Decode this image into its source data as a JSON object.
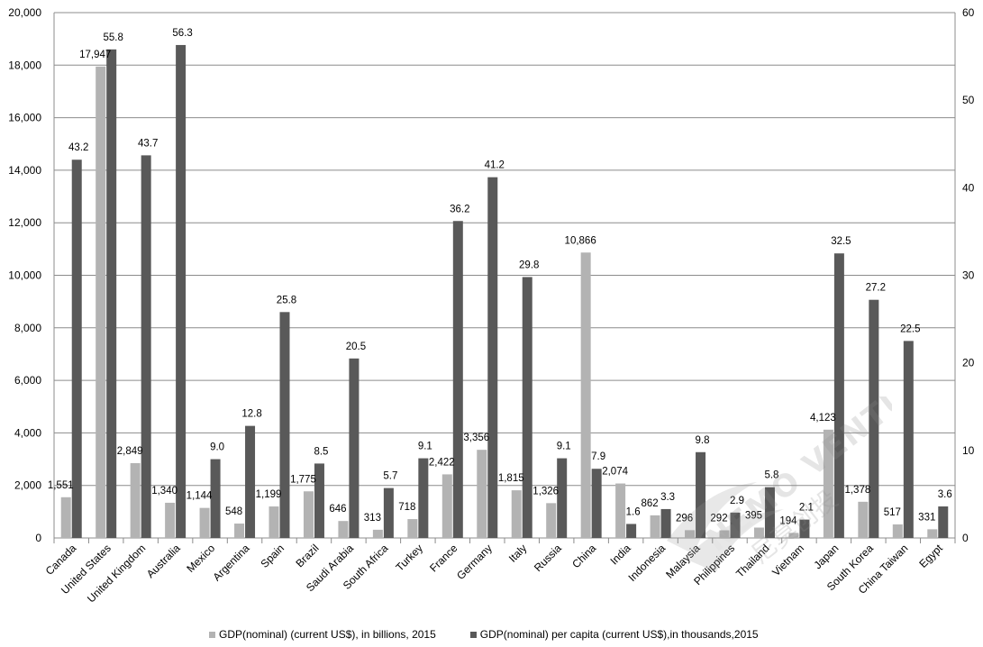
{
  "chart_data": {
    "type": "bar",
    "categories": [
      "Canada",
      "United States",
      "United Kingdom",
      "Australia",
      "Mexico",
      "Argentina",
      "Spain",
      "Brazil",
      "Saudi Arabia",
      "South Africa",
      "Turkey",
      "France",
      "Germany",
      "Italy",
      "Russia",
      "China",
      "India",
      "Indonesia",
      "Malaysia",
      "Philippines",
      "Thailand",
      "Vietnam",
      "Japan",
      "South Korea",
      "China Taiwan",
      "Egypt"
    ],
    "series": [
      {
        "name": "GDP(nominal) (current US$), in billions, 2015",
        "axis": "left",
        "color": "#b3b3b3",
        "values": [
          1551,
          17947,
          2849,
          1340,
          1144,
          548,
          1199,
          1775,
          646,
          313,
          718,
          2422,
          3356,
          1815,
          1326,
          10866,
          2074,
          862,
          296,
          292,
          395,
          194,
          4123,
          1378,
          517,
          331
        ],
        "labels": [
          "1,551",
          "17,947",
          "2,849",
          "1,340",
          "1,144",
          "548",
          "1,199",
          "1,775",
          "646",
          "313",
          "718",
          "2,422",
          "3,356",
          "1,815",
          "1,326",
          "10,866",
          "2,074",
          "862",
          "296",
          "292",
          "395",
          "194",
          "4,123",
          "1,378",
          "517",
          "331"
        ]
      },
      {
        "name": "GDP(nominal) per capita (current US$),in thousands,2015",
        "axis": "right",
        "color": "#595959",
        "values": [
          43.2,
          55.8,
          43.7,
          56.3,
          9.0,
          12.8,
          25.8,
          8.5,
          20.5,
          5.7,
          9.1,
          36.2,
          41.2,
          29.8,
          9.1,
          7.9,
          1.6,
          3.3,
          9.8,
          2.9,
          5.8,
          2.1,
          32.5,
          27.2,
          22.5,
          3.6
        ],
        "labels": [
          "43.2",
          "55.8",
          "43.7",
          "56.3",
          "9.0",
          "12.8",
          "25.8",
          "8.5",
          "20.5",
          "5.7",
          "9.1",
          "36.2",
          "41.2",
          "29.8",
          "9.1",
          "7.9",
          "1.6",
          "3.3",
          "9.8",
          "2.9",
          "5.8",
          "2.1",
          "32.5",
          "27.2",
          "22.5",
          "3.6"
        ]
      }
    ],
    "y_left": {
      "min": 0,
      "max": 20000,
      "ticks": [
        "0",
        "2,000",
        "4,000",
        "6,000",
        "8,000",
        "10,000",
        "12,000",
        "14,000",
        "16,000",
        "18,000",
        "20,000"
      ]
    },
    "y_right": {
      "min": 0,
      "max": 60,
      "ticks": [
        "0",
        "10",
        "20",
        "30",
        "40",
        "50",
        "60"
      ]
    },
    "grid": true,
    "legend_position": "bottom"
  },
  "watermark": {
    "text": "NEMO VENTURES",
    "subtext": "尼莫创投"
  }
}
